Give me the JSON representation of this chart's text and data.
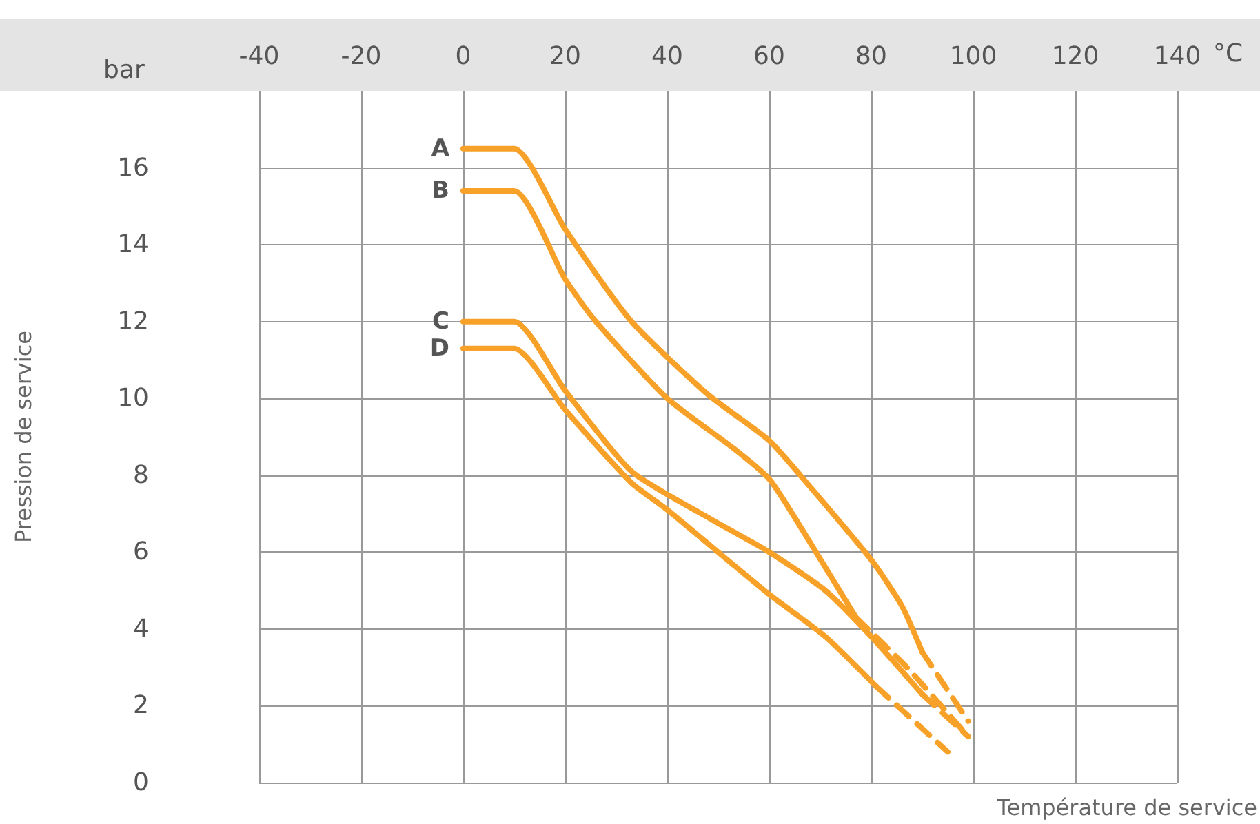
{
  "chart_data": {
    "type": "line",
    "xlabel": "Température de service",
    "ylabel": "Pression de service",
    "annotations": [
      "bar",
      "°C"
    ],
    "xlim": [
      -40,
      140
    ],
    "xticks": [
      -40,
      -20,
      0,
      20,
      40,
      60,
      80,
      100,
      120,
      140
    ],
    "ylim": [
      0,
      18
    ],
    "yticks": [
      0,
      2,
      4,
      6,
      8,
      10,
      12,
      14,
      16
    ],
    "grid": true,
    "marker": "none",
    "legend": false,
    "series": [
      {
        "name": "A",
        "color": "#f7a128",
        "line_style": "solid",
        "x": [
          0,
          10,
          20,
          33,
          48,
          60,
          68,
          80,
          86,
          90
        ],
        "values": [
          16.5,
          16.5,
          14.4,
          12.0,
          10.1,
          8.9,
          7.7,
          5.8,
          4.6,
          3.4
        ]
      },
      {
        "color": "#f7a128",
        "line_style": "dashed",
        "x": [
          90,
          99
        ],
        "values": [
          3.4,
          1.6
        ]
      },
      {
        "name": "B",
        "color": "#f7a128",
        "line_style": "solid",
        "x": [
          0,
          10,
          20,
          26,
          40,
          53,
          60,
          65,
          77
        ],
        "values": [
          15.4,
          15.4,
          13.1,
          12.0,
          10.0,
          8.7,
          7.9,
          6.9,
          4.3
        ]
      },
      {
        "color": "#f7a128",
        "line_style": "dashed",
        "x": [
          77,
          87,
          99
        ],
        "values": [
          4.3,
          3.0,
          1.2
        ]
      },
      {
        "name": "C",
        "color": "#f7a128",
        "line_style": "solid",
        "x": [
          0,
          10,
          20,
          33,
          48,
          60,
          71,
          80,
          90
        ],
        "values": [
          12.0,
          12.0,
          10.2,
          8.1,
          6.9,
          6.0,
          5.0,
          3.8,
          2.3
        ]
      },
      {
        "color": "#f7a128",
        "line_style": "dashed",
        "x": [
          90,
          99
        ],
        "values": [
          2.3,
          1.2
        ]
      },
      {
        "name": "D",
        "color": "#f7a128",
        "line_style": "solid",
        "x": [
          0,
          10,
          20,
          33,
          40,
          60,
          71,
          81
        ],
        "values": [
          11.3,
          11.3,
          9.7,
          7.8,
          7.1,
          4.9,
          3.8,
          2.5
        ]
      },
      {
        "color": "#f7a128",
        "line_style": "dashed",
        "x": [
          81,
          95
        ],
        "values": [
          2.5,
          0.8
        ]
      }
    ]
  }
}
